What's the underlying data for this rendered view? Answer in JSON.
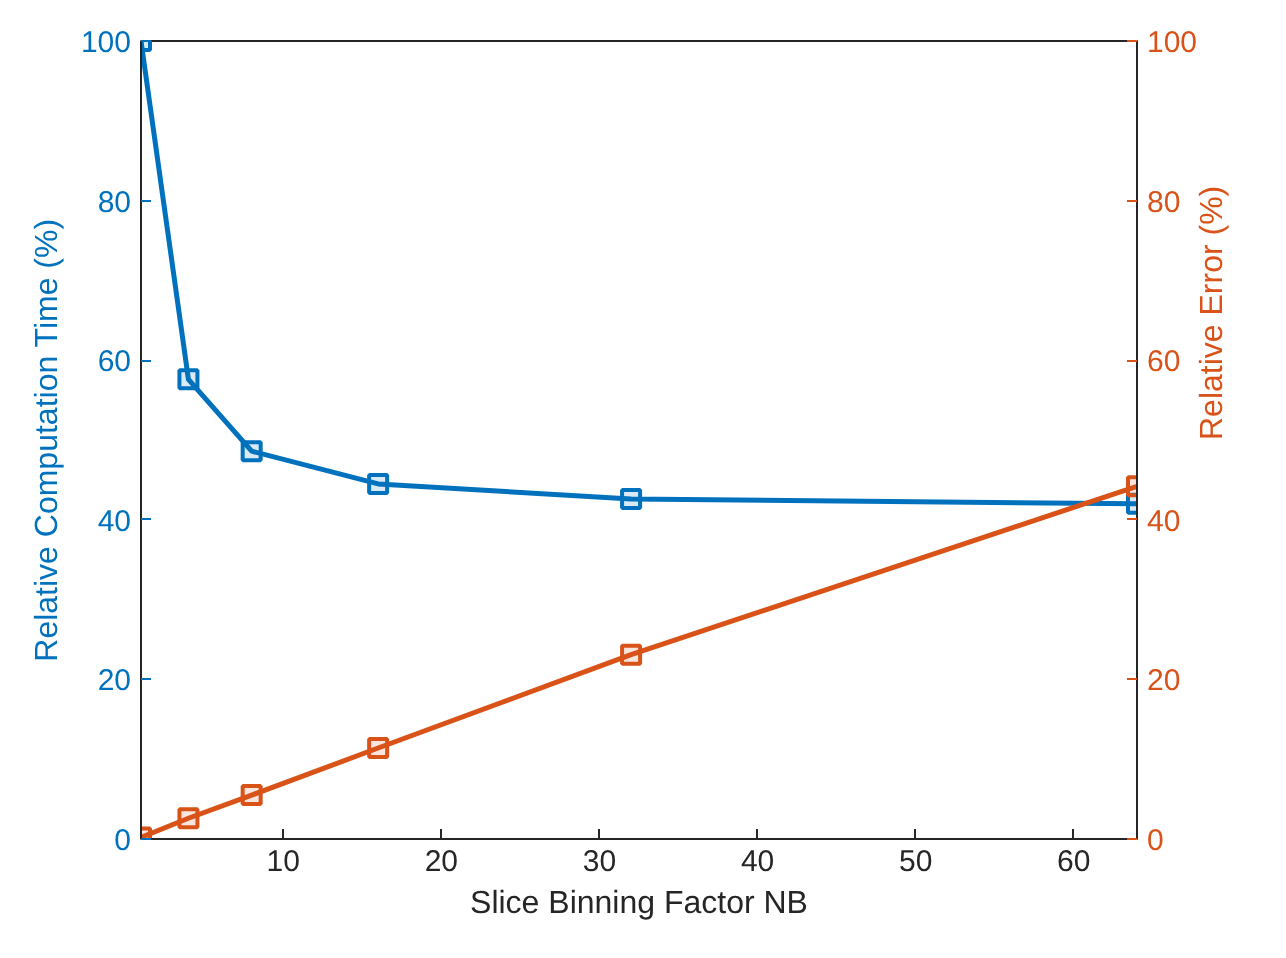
{
  "chart_data": {
    "type": "line",
    "xlabel": "Slice Binning Factor NB",
    "ylabel": "Relative Computation Time (%)",
    "y2label": "Relative Error (%)",
    "x": [
      1,
      4,
      8,
      16,
      32,
      64
    ],
    "series": [
      {
        "color": "#0072bd",
        "values": [
          100,
          57.6,
          48.6,
          44.5,
          42.6,
          42.0
        ]
      },
      {
        "color": "#d95319",
        "axis": "y2",
        "values": [
          0.2,
          2.6,
          5.5,
          11.4,
          23.1,
          44.2
        ]
      }
    ],
    "xlim": [
      1,
      64
    ],
    "xticks": [
      10,
      20,
      30,
      40,
      50,
      60
    ],
    "ylim": [
      0,
      100
    ],
    "yticks": [
      0,
      20,
      40,
      60,
      80,
      100
    ],
    "y2lim": [
      0,
      100
    ],
    "y2ticks": [
      0,
      20,
      40,
      60,
      80,
      100
    ],
    "marker": "square",
    "line_style": "solid",
    "grid": false
  }
}
